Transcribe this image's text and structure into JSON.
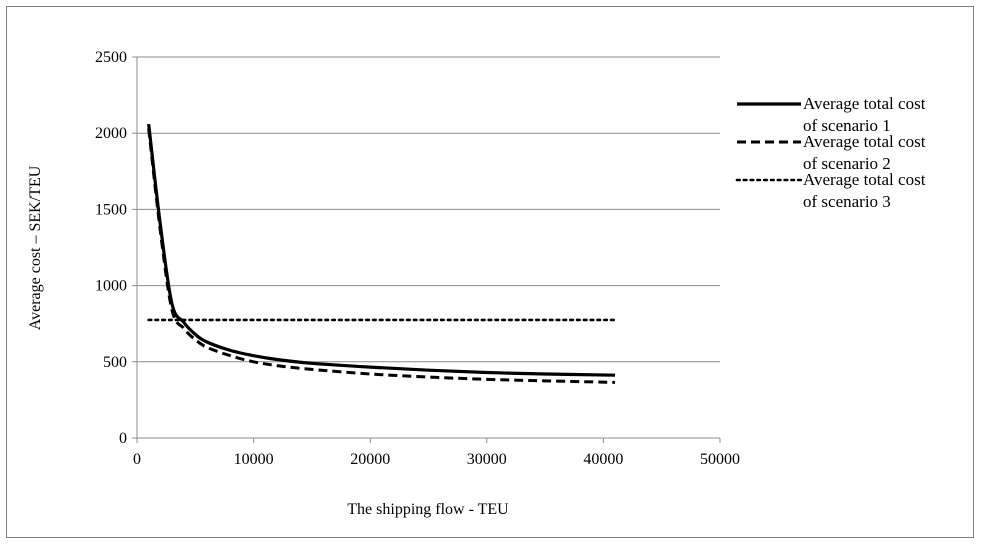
{
  "chart_data": {
    "type": "line",
    "title": "",
    "xlabel": "The shipping flow - TEU",
    "ylabel": "Average cost – SEK/TEU",
    "xlim": [
      0,
      50000
    ],
    "ylim": [
      0,
      2500
    ],
    "xticks": [
      0,
      10000,
      20000,
      30000,
      40000,
      50000
    ],
    "yticks": [
      0,
      500,
      1000,
      1500,
      2000,
      2500
    ],
    "grid": "horizontal",
    "legend_position": "right",
    "series": [
      {
        "name": "Average total cost of scenario 1",
        "legend_lines": [
          "Average total cost",
          "of scenario 1"
        ],
        "style": "solid",
        "color": "#000000",
        "x": [
          1000,
          2000,
          3000,
          4000,
          5000,
          6000,
          8000,
          10000,
          12000,
          15000,
          20000,
          25000,
          30000,
          35000,
          41000
        ],
        "y": [
          2060,
          1400,
          880,
          760,
          680,
          630,
          575,
          540,
          515,
          490,
          465,
          445,
          430,
          420,
          412
        ]
      },
      {
        "name": "Average total cost of scenario 2",
        "legend_lines": [
          "Average total cost",
          "of scenario 2"
        ],
        "style": "dashed",
        "color": "#000000",
        "x": [
          1000,
          2000,
          3000,
          4000,
          5000,
          6000,
          8000,
          10000,
          12000,
          15000,
          20000,
          25000,
          30000,
          35000,
          41000
        ],
        "y": [
          2030,
          1360,
          840,
          720,
          645,
          595,
          540,
          500,
          475,
          450,
          420,
          400,
          385,
          375,
          365
        ]
      },
      {
        "name": "Average total cost of scenario 3",
        "legend_lines": [
          "Average total cost",
          "of scenario 3"
        ],
        "style": "dotted",
        "color": "#000000",
        "x": [
          1000,
          41000
        ],
        "y": [
          775,
          775
        ]
      }
    ]
  }
}
